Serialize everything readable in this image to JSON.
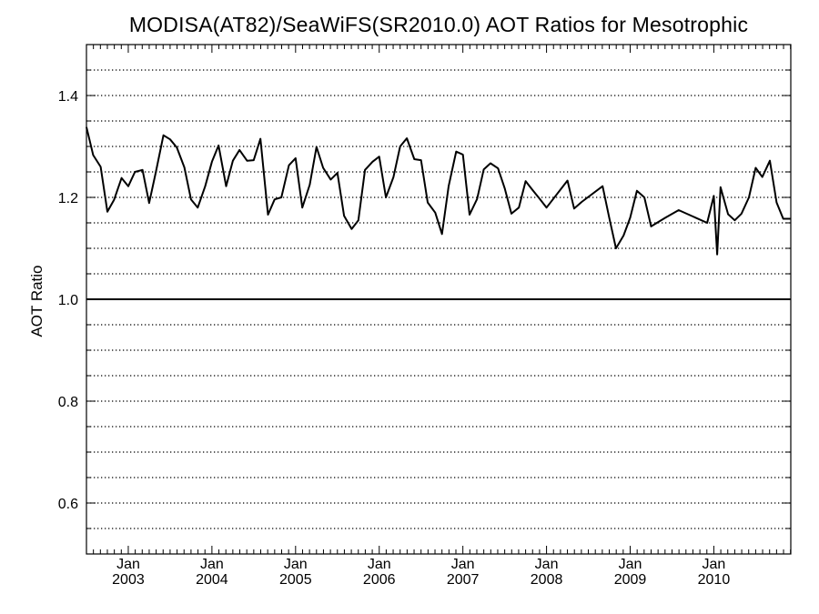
{
  "chart_data": {
    "type": "line",
    "title": "MODISA(AT82)/SeaWiFS(SR2010.0)  AOT Ratios for Mesotrophic",
    "xlabel": "",
    "ylabel": "AOT Ratio",
    "xlim": [
      2002.5,
      2010.92
    ],
    "ylim": [
      0.5,
      1.5
    ],
    "y_ticks": [
      0.6,
      0.8,
      1.0,
      1.2,
      1.4
    ],
    "y_tick_labels": [
      "0.6",
      "0.8",
      "1.0",
      "1.2",
      "1.4"
    ],
    "x_ticks": [
      {
        "month": "Jan",
        "year": "2003",
        "x": 2003.0
      },
      {
        "month": "Jan",
        "year": "2004",
        "x": 2004.0
      },
      {
        "month": "Jan",
        "year": "2005",
        "x": 2005.0
      },
      {
        "month": "Jan",
        "year": "2006",
        "x": 2006.0
      },
      {
        "month": "Jan",
        "year": "2007",
        "x": 2007.0
      },
      {
        "month": "Jan",
        "year": "2008",
        "x": 2008.0
      },
      {
        "month": "Jan",
        "year": "2009",
        "x": 2009.0
      },
      {
        "month": "Jan",
        "year": "2010",
        "x": 2010.0
      }
    ],
    "grid": "horizontal dotted lines every 0.05",
    "reference_line": 1.0,
    "series": [
      {
        "x": [
          2002.5,
          2002.58,
          2002.67,
          2002.75,
          2002.83,
          2002.92,
          2003.0,
          2003.08,
          2003.17,
          2003.25,
          2003.33,
          2003.42,
          2003.5,
          2003.58,
          2003.67,
          2003.75,
          2003.83,
          2003.92,
          2004.0,
          2004.08,
          2004.17,
          2004.25,
          2004.33,
          2004.42,
          2004.5,
          2004.58,
          2004.67,
          2004.75,
          2004.83,
          2004.92,
          2005.0,
          2005.08,
          2005.17,
          2005.25,
          2005.33,
          2005.42,
          2005.5,
          2005.58,
          2005.67,
          2005.75,
          2005.83,
          2005.92,
          2006.0,
          2006.08,
          2006.17,
          2006.25,
          2006.33,
          2006.42,
          2006.5,
          2006.58,
          2006.67,
          2006.75,
          2006.83,
          2006.92,
          2007.0,
          2007.08,
          2007.17,
          2007.25,
          2007.33,
          2007.42,
          2007.5,
          2007.58,
          2007.67,
          2007.75,
          2007.83,
          2007.92,
          2008.0,
          2008.25,
          2008.33,
          2008.42,
          2008.67,
          2008.75,
          2008.83,
          2008.92,
          2009.0,
          2009.08,
          2009.17,
          2009.25,
          2009.42,
          2009.58,
          2009.92,
          2010.0,
          2010.04,
          2010.08,
          2010.17,
          2010.25,
          2010.33,
          2010.42,
          2010.5,
          2010.58,
          2010.67,
          2010.75,
          2010.83,
          2010.92
        ],
        "y": [
          1.338,
          1.283,
          1.26,
          1.172,
          1.195,
          1.238,
          1.222,
          1.25,
          1.254,
          1.189,
          1.25,
          1.322,
          1.314,
          1.298,
          1.259,
          1.196,
          1.18,
          1.222,
          1.27,
          1.302,
          1.222,
          1.272,
          1.293,
          1.272,
          1.273,
          1.315,
          1.166,
          1.196,
          1.2,
          1.263,
          1.277,
          1.18,
          1.225,
          1.299,
          1.258,
          1.235,
          1.248,
          1.164,
          1.138,
          1.155,
          1.254,
          1.27,
          1.28,
          1.2,
          1.24,
          1.3,
          1.316,
          1.275,
          1.273,
          1.19,
          1.17,
          1.128,
          1.222,
          1.29,
          1.284,
          1.166,
          1.197,
          1.255,
          1.267,
          1.257,
          1.218,
          1.168,
          1.18,
          1.232,
          1.215,
          1.197,
          1.18,
          1.233,
          1.178,
          1.191,
          1.222,
          1.16,
          1.1,
          1.125,
          1.16,
          1.213,
          1.2,
          1.143,
          1.16,
          1.175,
          1.15,
          1.203,
          1.088,
          1.22,
          1.167,
          1.155,
          1.168,
          1.2,
          1.258,
          1.24,
          1.272,
          1.19,
          1.158,
          1.158
        ]
      }
    ]
  }
}
